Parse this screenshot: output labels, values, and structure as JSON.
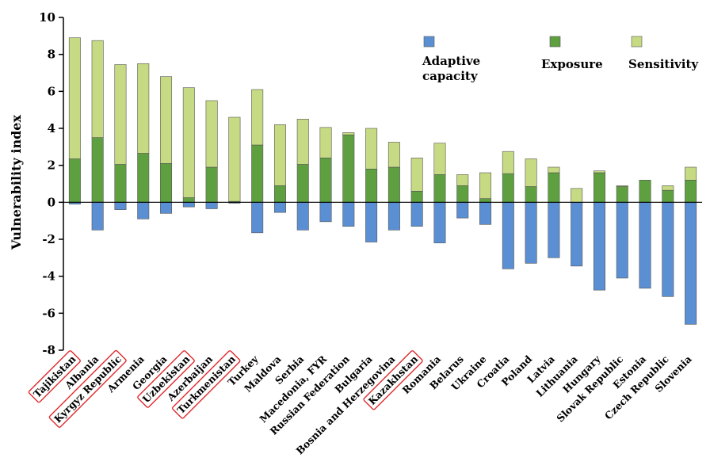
{
  "chart_data": {
    "type": "bar",
    "stacked": true,
    "title": "",
    "xlabel": "",
    "ylabel": "Vulnerability index",
    "ylim": [
      -8,
      10
    ],
    "yticks": [
      10,
      8,
      6,
      4,
      2,
      0,
      -2,
      -4,
      -6,
      -8
    ],
    "grid": false,
    "legend_position": "top-right",
    "categories": [
      "Tajikistan",
      "Albania",
      "Kyrgyz Republic",
      "Armenia",
      "Georgia",
      "Uzbekistan",
      "Azerbaijan",
      "Turkmenistan",
      "Turkey",
      "Maldova",
      "Serbia",
      "Macedonia, FYR",
      "Russian Federation",
      "Bulgaria",
      "Bosnia and Herzegovina",
      "Kazakhstan",
      "Romania",
      "Belarus",
      "Ukraine",
      "Croatia",
      "Poland",
      "Latvia",
      "Lithuania",
      "Hungary",
      "Slovak Republic",
      "Estonia",
      "Czech Republic",
      "Slovenia"
    ],
    "highlighted_categories": [
      "Tajikistan",
      "Kyrgyz Republic",
      "Uzbekistan",
      "Turkmenistan",
      "Kazakhstan"
    ],
    "series": [
      {
        "name": "Adaptive capacity",
        "color": "#5b8fd3",
        "values": [
          -0.1,
          -1.5,
          -0.4,
          -0.9,
          -0.6,
          -0.25,
          -0.35,
          -0.05,
          -1.65,
          -0.55,
          -1.5,
          -1.05,
          -1.3,
          -2.15,
          -1.5,
          -1.3,
          -2.2,
          -0.85,
          -1.2,
          -3.6,
          -3.3,
          -3.0,
          -3.45,
          -4.75,
          -4.1,
          -4.65,
          -5.1,
          -6.6
        ]
      },
      {
        "name": "Exposure",
        "color": "#5ea040",
        "values": [
          2.35,
          3.5,
          2.05,
          2.65,
          2.1,
          0.25,
          1.9,
          0.05,
          3.1,
          0.9,
          2.05,
          2.4,
          3.65,
          1.8,
          1.9,
          0.6,
          1.5,
          0.9,
          0.2,
          1.55,
          0.85,
          1.6,
          0.0,
          1.6,
          0.85,
          1.2,
          0.65,
          1.2
        ]
      },
      {
        "name": "Sensitivity",
        "color": "#c6da83",
        "values": [
          6.55,
          5.25,
          5.4,
          4.85,
          4.7,
          5.95,
          3.6,
          4.55,
          3.0,
          3.3,
          2.45,
          1.65,
          0.12,
          2.2,
          1.35,
          1.8,
          1.7,
          0.6,
          1.4,
          1.2,
          1.5,
          0.3,
          0.75,
          0.1,
          0.05,
          0.0,
          0.25,
          0.7
        ]
      }
    ]
  }
}
